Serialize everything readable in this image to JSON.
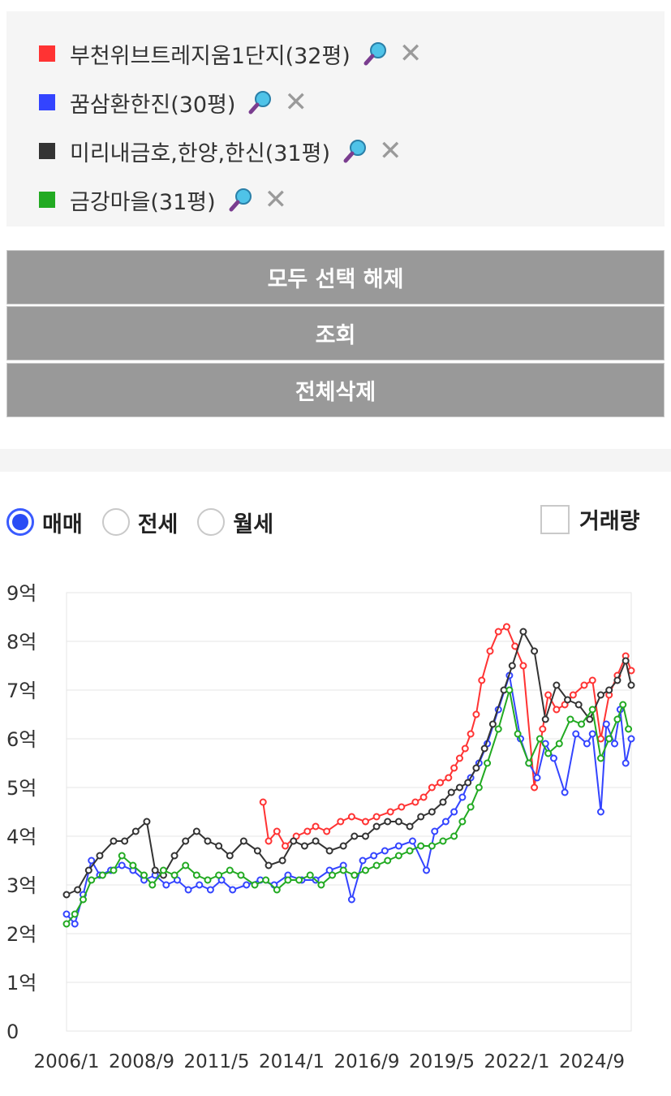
{
  "legend": [
    {
      "label": "부천위브트레지움1단지(32평)",
      "color": "#ff3333"
    },
    {
      "label": "꿈삼환한진(30평)",
      "color": "#3344ff"
    },
    {
      "label": "미리내금호,한양,한신(31평)",
      "color": "#333333"
    },
    {
      "label": "금강마을(31평)",
      "color": "#22aa22"
    }
  ],
  "buttons": {
    "deselect_all": "모두 선택 해제",
    "search": "조회",
    "delete_all": "전체삭제"
  },
  "trade_types": [
    {
      "label": "매매",
      "checked": true
    },
    {
      "label": "전세",
      "checked": false
    },
    {
      "label": "월세",
      "checked": false
    }
  ],
  "volume_label": "거래량",
  "chart_data": {
    "type": "line",
    "y_ticks": [
      "0",
      "1억",
      "2억",
      "3억",
      "4억",
      "5억",
      "6억",
      "7억",
      "8억",
      "9억"
    ],
    "ylim": [
      0,
      9
    ],
    "x_ticks": [
      "2006/1",
      "2008/9",
      "2011/5",
      "2014/1",
      "2016/9",
      "2019/5",
      "2022/1",
      "2024/9"
    ],
    "xlim": [
      2006.0,
      2026.4
    ],
    "grid": true,
    "series": [
      {
        "name": "부천위브트레지움1단지(32평)",
        "color": "#ff3333",
        "x": [
          2013.1,
          2013.3,
          2013.6,
          2013.9,
          2014.3,
          2014.7,
          2015.0,
          2015.4,
          2015.9,
          2016.3,
          2016.8,
          2017.2,
          2017.7,
          2018.1,
          2018.6,
          2018.9,
          2019.2,
          2019.5,
          2019.8,
          2020.0,
          2020.2,
          2020.4,
          2020.6,
          2020.8,
          2021.0,
          2021.3,
          2021.6,
          2021.9,
          2022.2,
          2022.5,
          2022.9,
          2023.2,
          2023.4,
          2023.7,
          2024.0,
          2024.3,
          2024.7,
          2025.0,
          2025.3,
          2025.6,
          2025.9,
          2026.2,
          2026.4
        ],
        "y": [
          4.7,
          3.9,
          4.1,
          3.8,
          4.0,
          4.1,
          4.2,
          4.1,
          4.3,
          4.4,
          4.3,
          4.4,
          4.5,
          4.6,
          4.7,
          4.8,
          5.0,
          5.1,
          5.2,
          5.4,
          5.6,
          5.8,
          6.1,
          6.5,
          7.2,
          7.8,
          8.2,
          8.3,
          7.9,
          7.5,
          5.0,
          6.2,
          6.9,
          6.6,
          6.7,
          6.9,
          7.1,
          7.2,
          6.0,
          6.9,
          7.3,
          7.7,
          7.4
        ]
      },
      {
        "name": "꿈삼환한진(30평)",
        "color": "#3344ff",
        "x": [
          2006.0,
          2006.3,
          2006.6,
          2006.9,
          2007.2,
          2007.6,
          2008.0,
          2008.4,
          2008.8,
          2009.2,
          2009.6,
          2010.0,
          2010.4,
          2010.8,
          2011.2,
          2011.6,
          2012.0,
          2012.5,
          2013.0,
          2013.5,
          2014.0,
          2014.5,
          2015.0,
          2015.5,
          2016.0,
          2016.3,
          2016.7,
          2017.1,
          2017.5,
          2018.0,
          2018.5,
          2019.0,
          2019.3,
          2019.7,
          2020.0,
          2020.3,
          2020.6,
          2020.9,
          2021.2,
          2021.6,
          2022.0,
          2022.4,
          2022.7,
          2023.0,
          2023.3,
          2023.6,
          2024.0,
          2024.4,
          2024.8,
          2025.0,
          2025.3,
          2025.5,
          2025.8,
          2026.0,
          2026.2,
          2026.4
        ],
        "y": [
          2.4,
          2.2,
          2.8,
          3.5,
          3.2,
          3.3,
          3.4,
          3.3,
          3.1,
          3.2,
          3.0,
          3.1,
          2.9,
          3.0,
          2.9,
          3.1,
          2.9,
          3.0,
          3.1,
          3.0,
          3.2,
          3.1,
          3.1,
          3.3,
          3.4,
          2.7,
          3.5,
          3.6,
          3.7,
          3.8,
          3.9,
          3.3,
          4.1,
          4.3,
          4.5,
          4.8,
          5.2,
          5.5,
          5.9,
          6.6,
          7.3,
          6.0,
          5.5,
          5.2,
          5.9,
          5.6,
          4.9,
          6.1,
          5.9,
          6.1,
          4.5,
          6.3,
          5.9,
          6.6,
          5.5,
          6.0
        ]
      },
      {
        "name": "미리내금호,한양,한신(31평)",
        "color": "#333333",
        "x": [
          2006.0,
          2006.4,
          2006.8,
          2007.2,
          2007.7,
          2008.1,
          2008.5,
          2008.9,
          2009.2,
          2009.5,
          2009.9,
          2010.3,
          2010.7,
          2011.1,
          2011.5,
          2011.9,
          2012.4,
          2012.9,
          2013.3,
          2013.8,
          2014.2,
          2014.6,
          2015.0,
          2015.5,
          2016.0,
          2016.4,
          2016.8,
          2017.2,
          2017.6,
          2018.0,
          2018.4,
          2018.8,
          2019.2,
          2019.6,
          2019.9,
          2020.2,
          2020.5,
          2020.8,
          2021.1,
          2021.4,
          2021.8,
          2022.1,
          2022.5,
          2022.9,
          2023.3,
          2023.7,
          2024.1,
          2024.5,
          2024.9,
          2025.3,
          2025.6,
          2025.9,
          2026.2,
          2026.4
        ],
        "y": [
          2.8,
          2.9,
          3.3,
          3.6,
          3.9,
          3.9,
          4.1,
          4.3,
          3.3,
          3.2,
          3.6,
          3.9,
          4.1,
          3.9,
          3.8,
          3.6,
          3.9,
          3.7,
          3.4,
          3.5,
          3.9,
          3.8,
          3.9,
          3.7,
          3.8,
          4.0,
          4.0,
          4.2,
          4.3,
          4.3,
          4.2,
          4.4,
          4.5,
          4.7,
          4.9,
          5.0,
          5.1,
          5.4,
          5.8,
          6.3,
          7.0,
          7.5,
          8.2,
          7.8,
          6.4,
          7.1,
          6.8,
          6.7,
          6.4,
          6.9,
          7.0,
          7.2,
          7.6,
          7.1
        ]
      },
      {
        "name": "금강마을(31평)",
        "color": "#22aa22",
        "x": [
          2006.0,
          2006.3,
          2006.6,
          2006.9,
          2007.3,
          2007.7,
          2008.0,
          2008.4,
          2008.8,
          2009.1,
          2009.5,
          2009.9,
          2010.3,
          2010.7,
          2011.1,
          2011.5,
          2011.9,
          2012.3,
          2012.8,
          2013.2,
          2013.6,
          2014.0,
          2014.4,
          2014.8,
          2015.2,
          2015.6,
          2016.0,
          2016.4,
          2016.8,
          2017.2,
          2017.6,
          2018.0,
          2018.4,
          2018.8,
          2019.2,
          2019.6,
          2020.0,
          2020.3,
          2020.6,
          2020.9,
          2021.2,
          2021.6,
          2022.0,
          2022.3,
          2022.7,
          2023.1,
          2023.4,
          2023.8,
          2024.2,
          2024.6,
          2025.0,
          2025.3,
          2025.6,
          2025.9,
          2026.1,
          2026.3
        ],
        "y": [
          2.2,
          2.4,
          2.7,
          3.1,
          3.2,
          3.3,
          3.6,
          3.4,
          3.2,
          3.0,
          3.3,
          3.2,
          3.4,
          3.2,
          3.1,
          3.2,
          3.3,
          3.2,
          3.0,
          3.1,
          2.9,
          3.1,
          3.1,
          3.2,
          3.0,
          3.2,
          3.3,
          3.2,
          3.3,
          3.4,
          3.5,
          3.6,
          3.7,
          3.8,
          3.8,
          3.9,
          4.0,
          4.3,
          4.6,
          5.0,
          5.5,
          6.2,
          7.0,
          6.1,
          5.5,
          6.0,
          5.7,
          5.9,
          6.4,
          6.3,
          6.6,
          5.6,
          6.0,
          6.4,
          6.7,
          6.2
        ]
      }
    ]
  }
}
